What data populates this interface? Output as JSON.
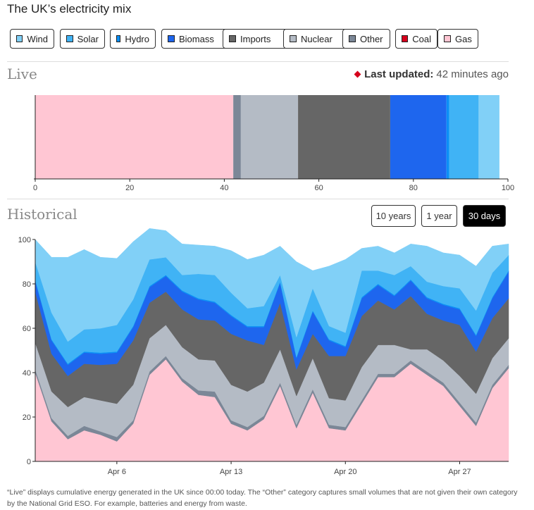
{
  "title": "The UK’s electricity mix",
  "legend": [
    {
      "label": "Wind",
      "color": "#81d0f7"
    },
    {
      "label": "Solar",
      "color": "#40b3f5"
    },
    {
      "label": "Hydro",
      "color": "#0b8ff6"
    },
    {
      "label": "Biomass",
      "color": "#1e66ee"
    },
    {
      "label": "Imports",
      "color": "#666666"
    },
    {
      "label": "Nuclear",
      "color": "#b4bbc5"
    },
    {
      "label": "Other",
      "color": "#7b8797"
    },
    {
      "label": "Coal",
      "color": "#d6001c"
    },
    {
      "label": "Gas",
      "color": "#ffc6d3"
    }
  ],
  "live": {
    "heading": "Live",
    "updated_label": "Last updated:",
    "updated_value": "42 minutes ago"
  },
  "historical": {
    "heading": "Historical",
    "ranges": [
      "10 years",
      "1 year",
      "30 days"
    ],
    "active_range": "30 days"
  },
  "footnote": "“Live” displays cumulative energy generated in the UK since 00:00 today. The “Other” category captures small volumes that are not given their own category by the National Grid ESO. For example, batteries and energy from waste.",
  "chart_data": [
    {
      "type": "bar",
      "title": "Live",
      "orientation": "horizontal-stacked",
      "xlim": [
        0,
        100
      ],
      "xticks": [
        "0",
        "20",
        "40",
        "60",
        "80",
        "100"
      ],
      "segments": [
        {
          "name": "Gas",
          "value": 41.9
        },
        {
          "name": "Coal",
          "value": 0
        },
        {
          "name": "Other",
          "value": 1.6
        },
        {
          "name": "Nuclear",
          "value": 12.1
        },
        {
          "name": "Imports",
          "value": 19.5
        },
        {
          "name": "Biomass",
          "value": 11.9
        },
        {
          "name": "Hydro",
          "value": 0.6
        },
        {
          "name": "Solar",
          "value": 6.2
        },
        {
          "name": "Wind",
          "value": 4.4
        }
      ]
    },
    {
      "type": "area",
      "title": "Historical",
      "ylim": [
        0,
        100
      ],
      "yticks": [
        "0",
        "20",
        "40",
        "60",
        "80",
        "100"
      ],
      "xticks": [
        {
          "label": "Apr 6",
          "day": 6
        },
        {
          "label": "Apr 13",
          "day": 13
        },
        {
          "label": "Apr 20",
          "day": 20
        },
        {
          "label": "Apr 27",
          "day": 27
        }
      ],
      "x_days": [
        1,
        2,
        3,
        4,
        5,
        6,
        7,
        8,
        9,
        10,
        11,
        12,
        13,
        14,
        15,
        16,
        17,
        18,
        19,
        20,
        21,
        22,
        23,
        24,
        25,
        26,
        27,
        28,
        29,
        30
      ],
      "stack_order": [
        "Gas",
        "Coal",
        "Other",
        "Nuclear",
        "Imports",
        "Biomass",
        "Hydro",
        "Solar",
        "Wind"
      ],
      "series": [
        {
          "name": "Gas",
          "values": [
            40,
            18,
            10,
            14,
            12,
            9,
            17,
            39,
            46,
            36,
            30,
            29,
            17,
            14,
            19,
            34,
            15,
            31,
            15,
            14,
            26,
            38,
            38,
            44,
            39,
            34,
            25,
            16,
            33,
            42
          ]
        },
        {
          "name": "Coal",
          "values": [
            0,
            0,
            0,
            0,
            0,
            0,
            0,
            0,
            0,
            0,
            0,
            0,
            0,
            0,
            0,
            0,
            0,
            0,
            0,
            0,
            0,
            0,
            0,
            0,
            0,
            0,
            0,
            0,
            0,
            0
          ]
        },
        {
          "name": "Other",
          "values": [
            1.5,
            1.5,
            1.5,
            2,
            1.5,
            2,
            1.5,
            1.5,
            1.5,
            1.5,
            2,
            2.5,
            1.5,
            1.5,
            1.5,
            1.5,
            1.5,
            1.5,
            1.5,
            1.5,
            1.5,
            1.5,
            1.5,
            1.5,
            1.5,
            1.5,
            1.5,
            1.5,
            1.5,
            1.5
          ]
        },
        {
          "name": "Nuclear",
          "values": [
            12,
            12,
            13,
            13,
            14,
            15,
            16,
            15,
            14,
            14,
            14,
            14,
            16,
            16,
            15,
            15,
            13,
            14,
            12,
            12,
            15,
            13,
            13,
            5,
            10,
            10,
            12,
            13,
            12,
            12
          ]
        },
        {
          "name": "Imports",
          "values": [
            23,
            17,
            14,
            15,
            16,
            18,
            20,
            16,
            15,
            17,
            18,
            18,
            23,
            23,
            17,
            21,
            12,
            11,
            19,
            20,
            23,
            20,
            16,
            24,
            16,
            18,
            23,
            19,
            18,
            18
          ]
        },
        {
          "name": "Biomass",
          "values": [
            5,
            6,
            5,
            5,
            5,
            5,
            6,
            7,
            7,
            8,
            9,
            8,
            8,
            6,
            8,
            9,
            5,
            10,
            7,
            4,
            8,
            7,
            6,
            7,
            7,
            7,
            7,
            7,
            9,
            12
          ]
        },
        {
          "name": "Hydro",
          "values": [
            0.5,
            0.5,
            0.5,
            0.5,
            0.5,
            0.5,
            0.5,
            0.5,
            0.5,
            0.5,
            0.5,
            0.5,
            0.5,
            0.5,
            0.5,
            0.5,
            0.5,
            0.5,
            0.5,
            0.5,
            0.5,
            0.5,
            0.5,
            0.5,
            0.5,
            0.5,
            0.5,
            0.5,
            0.5,
            0.5
          ]
        },
        {
          "name": "Solar",
          "values": [
            8,
            12,
            10,
            10,
            11,
            12,
            12,
            12,
            8,
            7,
            11,
            12,
            10,
            8,
            9,
            3,
            9,
            10,
            6,
            6,
            12,
            6,
            9,
            6,
            7,
            8,
            9,
            11,
            11,
            7
          ]
        },
        {
          "name": "Wind",
          "values": [
            10,
            25,
            38,
            36,
            32,
            30,
            26,
            14,
            12,
            14,
            13,
            13,
            19,
            22,
            23,
            13,
            34,
            8,
            27,
            33,
            10,
            11,
            10,
            10,
            16,
            15,
            15,
            20,
            12,
            5
          ]
        }
      ]
    }
  ]
}
